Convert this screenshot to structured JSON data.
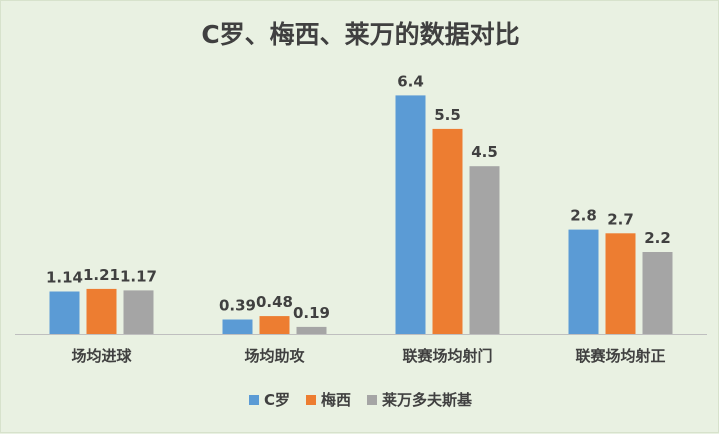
{
  "chart_data": {
    "type": "bar",
    "title": "C罗、梅西、莱万的数据对比",
    "categories": [
      "场均进球",
      "场均助攻",
      "联赛场均射门",
      "联赛场均射正"
    ],
    "series": [
      {
        "name": "C罗",
        "color": "#5b9bd5",
        "values": [
          1.14,
          0.39,
          6.4,
          2.8
        ],
        "labels": [
          "1.14",
          "0.39",
          "6.4",
          "2.8"
        ]
      },
      {
        "name": "梅西",
        "color": "#ed7d31",
        "values": [
          1.21,
          0.48,
          5.5,
          2.7
        ],
        "labels": [
          "1.21",
          "0.48",
          "5.5",
          "2.7"
        ]
      },
      {
        "name": "莱万多夫斯基",
        "color": "#a5a5a5",
        "values": [
          1.17,
          0.19,
          4.5,
          2.2
        ],
        "labels": [
          "1.17",
          "0.19",
          "4.5",
          "2.2"
        ]
      }
    ],
    "ylim": [
      0,
      7
    ],
    "grid": false,
    "legend_position": "bottom",
    "xlabel": "",
    "ylabel": ""
  }
}
